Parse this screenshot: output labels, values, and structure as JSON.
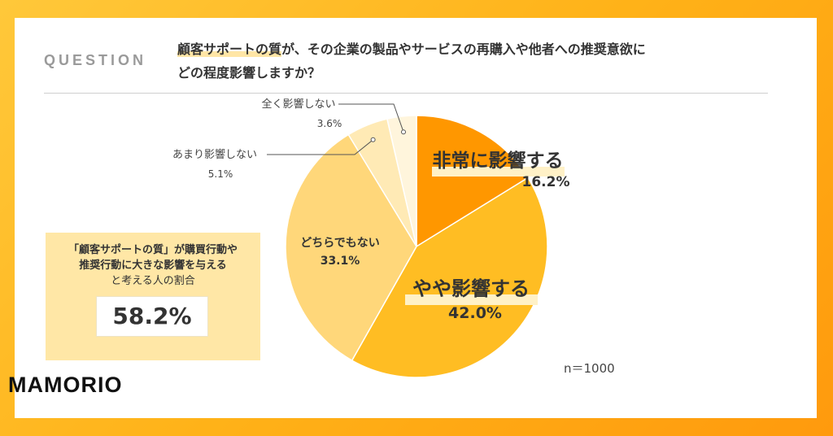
{
  "question": {
    "label": "QUESTION",
    "line1_highlight": "顧客サポートの質",
    "line1_rest": "が、その企業の製品やサービスの再購入や他者への推奨意欲に",
    "line2": "どの程度影響しますか？"
  },
  "summary": {
    "line1": "「顧客サポートの質」が購買行動や",
    "line2": "推奨行動に大きな影響を与える",
    "line3": "と考える人の割合",
    "value": "58.2%"
  },
  "sample_size": "n＝1000",
  "brand": "MAMORIO",
  "colors": {
    "s1": "#ff9700",
    "s2": "#ffbd23",
    "s3": "#ffd77a",
    "s4": "#ffeab5",
    "s5": "#fff5dc"
  },
  "chart_data": {
    "type": "pie",
    "title": "顧客サポートの質が、その企業の製品やサービスの再購入や他者への推奨意欲にどの程度影響しますか？",
    "categories": [
      "非常に影響する",
      "やや影響する",
      "どちらでもない",
      "あまり影響しない",
      "全く影響しない"
    ],
    "values": [
      16.2,
      42.0,
      33.1,
      5.1,
      3.6
    ],
    "value_labels": [
      "16.2%",
      "42.0%",
      "33.1%",
      "5.1%",
      "3.6%"
    ],
    "start": "12 o'clock",
    "direction": "clockwise"
  }
}
